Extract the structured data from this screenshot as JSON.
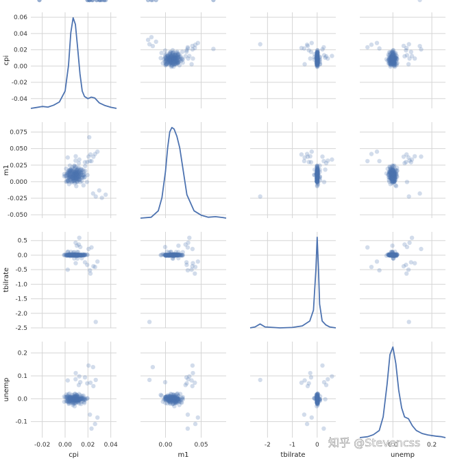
{
  "chart_data": {
    "type": "scatter",
    "kind": "scatter-matrix",
    "diagonal": "kde",
    "variables": [
      "cpi",
      "m1",
      "tbilrate",
      "unemp"
    ],
    "colors": {
      "marker": "#4c72b0",
      "line": "#4c72b0",
      "grid": "#d5d5d5",
      "background": "#ffffff"
    },
    "marker_alpha": 0.25,
    "grid": true,
    "axes": {
      "cpi": {
        "label": "cpi",
        "lim": [
          -0.03,
          0.045
        ],
        "ticks": [
          -0.02,
          0.0,
          0.02,
          0.04
        ],
        "tick_labels": [
          "-0.02",
          "0.00",
          "0.02",
          "0.04"
        ],
        "y_tick_labels": [
          "-0.04",
          "-0.02",
          "0.00",
          "0.02",
          "0.04",
          "0.06"
        ],
        "y_ticks": [
          -0.04,
          -0.02,
          0.0,
          0.02,
          0.04,
          0.06
        ],
        "y_lim": [
          -0.052,
          0.066
        ]
      },
      "m1": {
        "label": "m1",
        "lim": [
          -0.035,
          0.085
        ],
        "ticks": [
          0.0,
          0.05
        ],
        "tick_labels": [
          "0.00",
          "0.05"
        ],
        "y_tick_labels": [
          "-0.050",
          "-0.025",
          "0.000",
          "0.025",
          "0.050",
          "0.075"
        ],
        "y_ticks": [
          -0.05,
          -0.025,
          0.0,
          0.025,
          0.05,
          0.075
        ],
        "y_lim": [
          -0.055,
          0.09
        ]
      },
      "tbilrate": {
        "label": "tbilrate",
        "lim": [
          -2.7,
          0.75
        ],
        "ticks": [
          -2,
          -1,
          0
        ],
        "tick_labels": [
          "-2",
          "-1",
          "0"
        ],
        "y_tick_labels": [
          "-2.5",
          "-2.0",
          "-1.5",
          "-1.0",
          "-0.5",
          "0.0",
          "0.5"
        ],
        "y_ticks": [
          -2.5,
          -2.0,
          -1.5,
          -1.0,
          -0.5,
          0.0,
          0.5
        ],
        "y_lim": [
          -2.5,
          0.8
        ]
      },
      "unemp": {
        "label": "unemp",
        "lim": [
          -0.17,
          0.27
        ],
        "ticks": [
          0.0,
          0.2
        ],
        "tick_labels": [
          "0.0",
          "0.2"
        ],
        "y_tick_labels": [
          "-0.1",
          "0.0",
          "0.1",
          "0.2"
        ],
        "y_ticks": [
          -0.1,
          0.0,
          0.1,
          0.2
        ],
        "y_lim": [
          -0.17,
          0.25
        ]
      }
    },
    "row_labels": [
      "cpi",
      "m1",
      "tbilrate",
      "unemp"
    ],
    "column_labels": [
      "cpi",
      "m1",
      "tbilrate",
      "unemp"
    ],
    "points": {
      "cpi": [
        0.0025,
        0.0046,
        0.0083,
        0.0092,
        0.0061,
        0.0081,
        0.0093,
        0.0072,
        0.0035,
        0.0087,
        0.0169,
        0.0057,
        0.0115,
        0.0176,
        0.0119,
        0.0153,
        0.0109,
        0.0108,
        0.0023,
        0.0114,
        0.008,
        0.0147,
        0.0072,
        0.0044,
        0.0107,
        0.0196,
        0.0146,
        0.0164,
        0.0101,
        0.0087,
        0.0103,
        0.0134,
        0.0092,
        0.0075,
        0.0051,
        0.0141,
        0.0037,
        0.0105,
        0.0098,
        0.0122,
        0.0009,
        0.0055,
        0.0021,
        0.0139,
        0.0002,
        0.0109,
        0.0082,
        0.0067,
        -0.0007,
        0.0108,
        0.0075,
        0.0032,
        0.0172,
        0.0063,
        0.0127,
        0.0114,
        0.0089,
        0.0017,
        0.0029,
        0.0161,
        0.0095,
        0.0125,
        0.0119,
        0.0038,
        0.0063,
        0.0065,
        0.0088,
        0.0082,
        -0.0008,
        0.0045,
        0.0011,
        0.0039,
        0.0083,
        0.0042,
        0.0112,
        0.0018,
        0.0175,
        0.0071,
        0.0113,
        0.0059,
        0.0086,
        0.0093,
        0.0061,
        0.0105,
        0.0076,
        0.0084,
        0.0119,
        0.0052,
        0.0028,
        0.0139,
        0.0033,
        0.0101,
        0.0034,
        0.0072,
        0.0085,
        0.0106,
        0.0009,
        0.0046,
        0.0046,
        0.0149,
        0.0062,
        0.01,
        0.0059,
        0.0106,
        0.0094,
        0.0099,
        0.0026,
        0.0072,
        0.0122,
        0.0092,
        0.0121,
        0.0045,
        0.0191,
        0.0073,
        0.0042,
        0.0073,
        0.0085,
        0.0124,
        0.0138,
        0.0042,
        0.0133,
        0.0034,
        0.0082,
        0.0101,
        0.0155,
        0.0069,
        0.0088,
        0.0081,
        0.0132,
        0.0044,
        0.0092,
        0.0124,
        0.0048,
        0.0057,
        0.0079,
        0.0077,
        0.0126,
        0.0047,
        0.0167,
        0.011,
        0.0081,
        0.0121,
        0.0041,
        0.0098,
        0.0159,
        0.0029,
        0.0122,
        0.0099,
        0.0019,
        0.0059,
        0.0053,
        0.0015,
        0.0062,
        0.0097,
        0.014,
        0.0143,
        0.0096,
        0.0091,
        0.0043,
        0.0076,
        0.0099,
        0.0097,
        0.0035,
        0.0023,
        0.0021,
        0.0077,
        0.0098,
        0.0109,
        0.0085,
        0.0102,
        0.0069,
        0.016,
        0.0101,
        0.0086,
        0.0087,
        0.0088,
        0.0033,
        0.0099,
        0.0132,
        0.0141,
        0.0096,
        0.0062,
        0.0068,
        0.0067,
        0.0113,
        0.0074,
        0.0047,
        0.0165,
        0.0103,
        0.0133,
        0.012,
        0.0092,
        0.0124,
        0.0093,
        0.0194,
        0.0023,
        0.0222,
        0.0174,
        0.0248,
        0.0283,
        0.0217,
        0.0262,
        0.0231,
        0.0205,
        0.0268,
        0.0245,
        0.0299,
        0.0322,
        0.0355,
        0.0211,
        0.0276,
        0.0196,
        0.0237,
        0.0307,
        0.0342,
        0.0215,
        -0.0225
      ],
      "m1": [
        0.0021,
        0.0142,
        0.0124,
        0.0057,
        0.0117,
        0.0242,
        0.0063,
        0.001,
        -0.0036,
        0.0073,
        0.0111,
        0.0158,
        0.0181,
        0.0164,
        0.0116,
        0.0064,
        0.0097,
        0.0107,
        0.0148,
        0.0142,
        0.0099,
        0.0009,
        0.0051,
        0.0107,
        0.0039,
        0.0101,
        0.0181,
        0.0148,
        0.0118,
        0.0115,
        0.0005,
        0.0109,
        0.0106,
        0.0116,
        0.0078,
        0.0135,
        0.0169,
        0.0071,
        -0.0066,
        0.0158,
        0.0196,
        0.0008,
        0.0121,
        0.0102,
        0.0091,
        0.0152,
        0.0183,
        0.0194,
        0.0115,
        0.0129,
        0.0068,
        0.0107,
        0.0071,
        0.0144,
        0.0085,
        0.0077,
        0.0125,
        0.0006,
        0.0068,
        -0.0055,
        0.0228,
        0.0142,
        0.0032,
        0.0082,
        0.0219,
        0.0102,
        0.0125,
        0.0233,
        0.0082,
        0.0175,
        0.0081,
        0.0146,
        0.0062,
        0.0243,
        0.0198,
        0.0054,
        0.0236,
        0.0045,
        0.0061,
        0.0133,
        0.0208,
        0.0157,
        0.0077,
        0.0054,
        0.0012,
        0.0089,
        0.0213,
        0.0182,
        0.0104,
        0.0068,
        0.0001,
        -0.0001,
        0.0133,
        0.0162,
        -0.0023,
        0.0177,
        0.0001,
        0.0083,
        0.0185,
        0.0063,
        0.0133,
        0.0169,
        0.0168,
        0.0143,
        0.0041,
        0.0124,
        0.0016,
        0.0089,
        0.0025,
        0.0109,
        0.0076,
        0.0157,
        -0.0004,
        0.0156,
        0.0069,
        0.0103,
        0.0135,
        0.0123,
        0.0127,
        0.0086,
        0.0144,
        0.0061,
        0.0062,
        0.0109,
        0.0102,
        0.0078,
        0.0143,
        0.0025,
        0.0031,
        0.0024,
        0.0052,
        0.0035,
        0.0061,
        -0.0008,
        0.0142,
        0.0053,
        0.0077,
        0.0036,
        0.0063,
        -0.0003,
        0.0108,
        0.0054,
        0.0114,
        0.0121,
        0.0172,
        0.0136,
        0.0083,
        0.0113,
        0.0119,
        0.0044,
        0.0113,
        0.0095,
        0.0064,
        0.006,
        0.0141,
        0.0167,
        0.0142,
        0.0045,
        0.0168,
        0.0051,
        0.0092,
        0.0111,
        0.0056,
        0.0007,
        0.0138,
        0.0104,
        0.012,
        0.0036,
        0.0147,
        0.0171,
        0.0031,
        0.0088,
        0.0069,
        0.0001,
        0.0101,
        0.0025,
        0.0172,
        0.0132,
        0.0176,
        0.0192,
        0.0027,
        0.0004,
        0.0061,
        0.0061,
        0.0087,
        0.0113,
        0.0067,
        0.0104,
        0.0182,
        -0.0004,
        0.0281,
        0.0318,
        0.0334,
        0.0384,
        0.0297,
        0.0366,
        0.0411,
        0.0294,
        0.0377,
        0.0454,
        0.0312,
        0.0418,
        0.0311,
        0.0379,
        -0.0224,
        -0.0178,
        -0.0132,
        -0.0243,
        -0.0196,
        0.0671
      ],
      "tbilrate": [
        0.118,
        0.0318,
        -0.0176,
        0.0005,
        0.0413,
        0.101,
        0.0077,
        -0.0102,
        0.0347,
        0.0209,
        0.0244,
        0.0096,
        0.1017,
        0.0134,
        0.0149,
        0.0346,
        0.0153,
        -0.1161,
        0.1041,
        0.0198,
        -0.1125,
        -0.0104,
        0.096,
        -0.0373,
        -0.0245,
        0.0115,
        -0.1041,
        0.0069,
        -0.0325,
        0.0218,
        0.0055,
        0.0106,
        -0.0097,
        0.0138,
        0.1107,
        0.0132,
        0.0226,
        0.1075,
        -0.0008,
        0.0166,
        0.0077,
        -0.0187,
        -0.0049,
        0.0124,
        0.0161,
        -0.0143,
        0.0236,
        0.0223,
        -0.0049,
        0.0078,
        0.0173,
        0.0037,
        0.0022,
        0.0028,
        -0.0014,
        0.0018,
        0.0099,
        -0.0227,
        0.0123,
        0.0055,
        -0.0006,
        0.0029,
        0.0025,
        0.0017,
        0.0001,
        -0.0168,
        -0.0052,
        -0.0154,
        0.0094,
        -0.0067,
        -0.0151,
        0.0001,
        0.0123,
        -0.0041,
        0.0101,
        -0.0003,
        0.0069,
        0.0058,
        0.0048,
        0.0075,
        0.0058,
        -0.0001,
        -0.0012,
        -0.0001,
        0.0106,
        -0.0025,
        -0.0131,
        0.0076,
        -0.005,
        -0.0151,
        0.0072,
        -0.0003,
        -0.0092,
        -0.0049,
        0.0122,
        -0.004,
        0.012,
        0.0089,
        0.0083,
        0.0013,
        0.0067,
        0.0045,
        -0.0007,
        0.0198,
        -0.01,
        0.0072,
        -0.0022,
        0.0106,
        -0.0033,
        0.0163,
        -0.0043,
        -0.0009,
        0.0141,
        0.0071,
        -0.0042,
        -0.0008,
        0.0003,
        -0.0014,
        -0.0086,
        -0.0002,
        0.0004,
        0.0014,
        0.0031,
        -0.005,
        -0.0019,
        0.003,
        -0.0047,
        0.0116,
        0.0026,
        -0.0044,
        -0.0105,
        -0.0077,
        -0.0021,
        0.0046,
        -0.0032,
        0.0077,
        -0.0022,
        -0.0041,
        -0.0011,
        -0.0107,
        0.0038,
        -0.0024,
        0.0031,
        0.004,
        0.0027,
        0.0055,
        0.0042,
        -0.0013,
        0.0051,
        -0.0026,
        -0.0061,
        -0.0017,
        -0.0043,
        -0.0063,
        0.005,
        -0.0036,
        0.0031,
        0.0033,
        -0.0091,
        -0.0124,
        0.0005,
        -0.0077,
        -0.0133,
        0.0002,
        0.0069,
        0.0022,
        -0.0036,
        -0.0039,
        -0.0021,
        -0.0003,
        -0.0027,
        -0.0025,
        -0.0031,
        0.0004,
        0.002,
        -0.0022,
        0.0019,
        0.0011,
        -0.0093,
        -0.0078,
        -0.0039,
        -0.0061,
        -0.0073,
        -0.0038,
        -0.0008,
        -0.0081,
        0.0063,
        -0.0117,
        0.3247,
        0.2796,
        0.3641,
        0.4262,
        0.5952,
        -0.2783,
        -0.3345,
        -0.5017,
        -0.6329,
        -0.2473,
        -0.3829,
        -0.2207,
        -0.5234,
        -0.4071,
        0.2641,
        0.2118,
        -2.2951
      ],
      "unemp": [
        0.0107,
        -0.018,
        -0.0326,
        -0.0063,
        0.0172,
        -0.0033,
        0.0064,
        0.0017,
        -0.0126,
        0.0214,
        -0.0186,
        -0.005,
        -0.0022,
        -0.0035,
        -0.0035,
        0.004,
        -0.0082,
        0.0027,
        -0.0092,
        -0.0073,
        0.0026,
        -0.0005,
        -0.0031,
        0.0088,
        -0.0052,
        0.0024,
        0.0004,
        -0.0026,
        0.0169,
        -0.0071,
        0.0084,
        -0.0002,
        -0.0036,
        0.0081,
        -0.0071,
        0.0051,
        0.0225,
        -0.0018,
        0.0168,
        0.0205,
        -0.0106,
        0.0026,
        -0.0002,
        -0.0231,
        0.0071,
        -0.0152,
        0.0111,
        -0.0269,
        -0.0127,
        0.0028,
        -0.0219,
        -0.0225,
        -0.0045,
        -0.0183,
        0.0007,
        -0.0055,
        0.0117,
        0.0072,
        0.0023,
        0.0137,
        -0.0172,
        -0.0087,
        -0.0079,
        0.0035,
        -0.0143,
        0.0067,
        -0.0196,
        0.0036,
        0.0095,
        0.0008,
        0.0185,
        -0.0118,
        -0.0188,
        0.0069,
        -0.0134,
        -0.0112,
        0.0005,
        -0.0079,
        -0.0086,
        0.0075,
        0.0207,
        -0.0087,
        0.0022,
        0.0122,
        0.0067,
        -0.0126,
        -0.0051,
        -0.0101,
        0.0187,
        -0.0153,
        -0.0184,
        0.0071,
        0.0059,
        -0.0175,
        -0.0031,
        0.0148,
        0.0072,
        0.002,
        -0.0104,
        0.0124,
        -0.0084,
        0.0005,
        -0.0025,
        0.0034,
        0.0089,
        -0.0121,
        -0.0003,
        -0.0065,
        -0.0201,
        -0.0046,
        0.0014,
        0.0071,
        0.0005,
        -0.0125,
        0.0006,
        -0.0015,
        0.0063,
        -0.002,
        -0.0002,
        0.0062,
        0.0146,
        0.0096,
        0.0045,
        -0.0063,
        -0.0104,
        -0.0052,
        0.0041,
        0.0045,
        -0.0007,
        -0.0018,
        -0.0061,
        0.0071,
        -0.0123,
        -0.0006,
        0.0041,
        -0.0046,
        -0.0058,
        -0.0017,
        -0.0133,
        0.0068,
        0.0077,
        -0.0051,
        0.0052,
        0.0035,
        -0.0033,
        -0.0146,
        -0.0052,
        -0.0047,
        0.0111,
        -0.0064,
        0.004,
        0.0047,
        -0.0018,
        -0.0026,
        -0.001,
        0.0054,
        0.0018,
        -0.0106,
        0.0009,
        0.0027,
        0.0008,
        -0.0031,
        -0.005,
        -0.0059,
        -0.0122,
        -0.0011,
        -0.0042,
        -0.003,
        -0.0037,
        0.001,
        0.0146,
        -0.0014,
        0.0103,
        -0.0019,
        0.0019,
        -0.0019,
        -0.0073,
        -0.0012,
        -0.0028,
        -0.0007,
        0.0106,
        -0.0049,
        -0.0008,
        0.0081,
        0.0074,
        -0.0036,
        0.0003,
        0.0046,
        -0.0023,
        0.0725,
        0.0601,
        0.0854,
        0.0978,
        0.1123,
        0.0672,
        0.0802,
        0.0701,
        0.0933,
        0.0552,
        -0.0821,
        -0.0694,
        -0.1103,
        -0.1305,
        0.1452,
        0.0823,
        0.1385
      ]
    },
    "kde": {
      "cpi": {
        "x": [
          -0.03,
          -0.025,
          -0.02,
          -0.015,
          -0.01,
          -0.005,
          0.0,
          0.003,
          0.005,
          0.007,
          0.009,
          0.011,
          0.013,
          0.015,
          0.017,
          0.02,
          0.023,
          0.026,
          0.03,
          0.035,
          0.04,
          0.045
        ],
        "y": [
          0.0,
          0.4,
          0.9,
          0.6,
          1.5,
          3.0,
          8.0,
          20.0,
          35.0,
          42.0,
          39.0,
          28.0,
          16.0,
          8.0,
          5.5,
          4.5,
          5.2,
          4.8,
          2.5,
          1.3,
          0.5,
          0.0
        ]
      },
      "m1": {
        "x": [
          -0.035,
          -0.02,
          -0.01,
          -0.005,
          0.0,
          0.003,
          0.006,
          0.009,
          0.012,
          0.016,
          0.02,
          0.025,
          0.03,
          0.04,
          0.05,
          0.06,
          0.07,
          0.08,
          0.085
        ],
        "y": [
          0.0,
          0.3,
          2.5,
          7.0,
          16.0,
          24.0,
          29.5,
          31.0,
          30.5,
          28.0,
          24.0,
          16.0,
          8.0,
          2.5,
          1.0,
          0.3,
          0.5,
          0.2,
          0.0
        ]
      },
      "tbilrate": {
        "x": [
          -2.7,
          -2.5,
          -2.3,
          -2.1,
          -1.5,
          -1.0,
          -0.6,
          -0.3,
          -0.15,
          -0.05,
          0.0,
          0.05,
          0.1,
          0.2,
          0.35,
          0.5,
          0.75
        ],
        "y": [
          0.0,
          0.05,
          0.2,
          0.05,
          0.0,
          0.02,
          0.1,
          0.35,
          0.9,
          3.0,
          4.6,
          3.1,
          1.2,
          0.35,
          0.15,
          0.05,
          0.0
        ]
      },
      "unemp": {
        "x": [
          -0.17,
          -0.13,
          -0.1,
          -0.07,
          -0.05,
          -0.03,
          -0.015,
          0.0,
          0.015,
          0.03,
          0.045,
          0.06,
          0.08,
          0.1,
          0.12,
          0.15,
          0.18,
          0.22,
          0.25,
          0.27
        ],
        "y": [
          0.0,
          0.15,
          0.5,
          1.2,
          3.5,
          9.0,
          14.0,
          15.3,
          12.5,
          8.0,
          5.0,
          3.5,
          3.2,
          2.0,
          1.2,
          0.7,
          0.45,
          0.25,
          0.15,
          0.0
        ]
      }
    }
  },
  "watermark": "知乎 @Stevencss"
}
